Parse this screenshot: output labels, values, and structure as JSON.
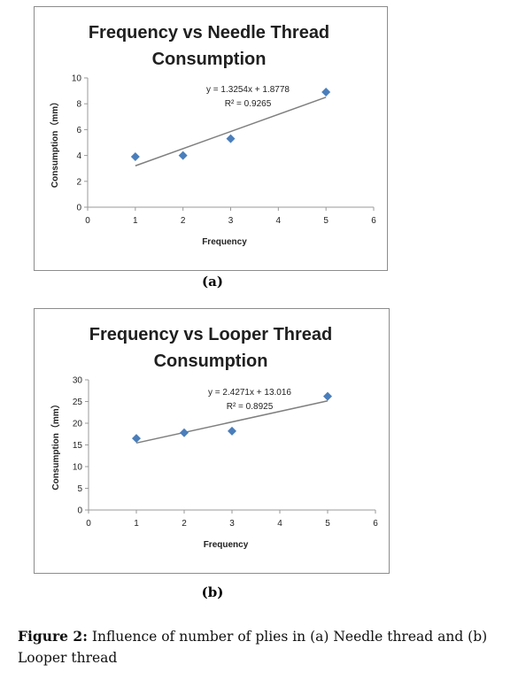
{
  "chart_data": [
    {
      "type": "scatter",
      "title": "Frequency vs Needle Thread Consumption",
      "title_lines": [
        "Frequency vs Needle Thread",
        "Consumption"
      ],
      "xlabel": "Frequency",
      "ylabel": "Consumption（mm）",
      "xlim": [
        0,
        6
      ],
      "ylim": [
        0,
        10
      ],
      "xticks": [
        0,
        1,
        2,
        3,
        4,
        5,
        6
      ],
      "yticks": [
        0,
        2,
        4,
        6,
        8,
        10
      ],
      "x": [
        1,
        2,
        3,
        5
      ],
      "y": [
        3.9,
        4.0,
        5.3,
        8.9
      ],
      "trendline": {
        "slope": 1.3254,
        "intercept": 1.8778,
        "x_range": [
          1,
          5
        ]
      },
      "equation": "y = 1.3254x + 1.8778",
      "r_squared": "R² = 0.9265",
      "marker_color": "#4a7ebb",
      "line_color": "#7f7f7f",
      "grid": false,
      "legend": false
    },
    {
      "type": "scatter",
      "title": "Frequency vs Looper Thread Consumption",
      "title_lines": [
        "Frequency vs Looper Thread",
        "Consumption"
      ],
      "xlabel": "Frequency",
      "ylabel": "Consumption（mm）",
      "xlim": [
        0,
        6
      ],
      "ylim": [
        0,
        30
      ],
      "xticks": [
        0,
        1,
        2,
        3,
        4,
        5,
        6
      ],
      "yticks": [
        0,
        5,
        10,
        15,
        20,
        25,
        30
      ],
      "x": [
        1,
        2,
        3,
        5
      ],
      "y": [
        16.5,
        17.8,
        18.2,
        26.2
      ],
      "trendline": {
        "slope": 2.4271,
        "intercept": 13.016,
        "x_range": [
          1,
          5
        ]
      },
      "equation": "y = 2.4271x + 13.016",
      "r_squared": "R² = 0.8925",
      "marker_color": "#4a7ebb",
      "line_color": "#7f7f7f",
      "grid": false,
      "legend": false
    }
  ],
  "subfigure_labels": [
    "(a)",
    "(b)"
  ],
  "caption": {
    "label": "Figure 2:",
    "text": " Influence of number of plies in (a) Needle thread and (b) Looper thread"
  }
}
